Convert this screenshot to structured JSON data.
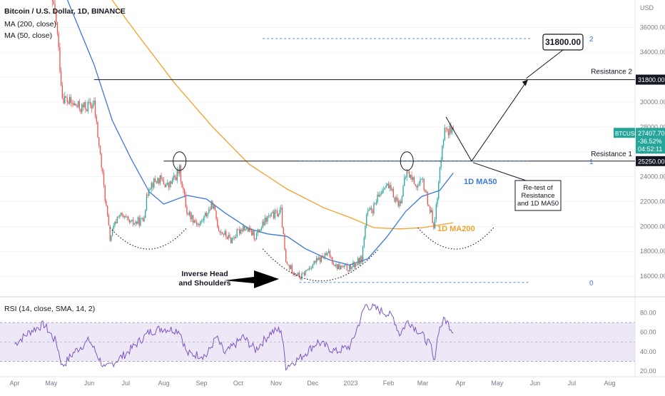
{
  "header": {
    "title": "Bitcoin / U.S. Dollar, 1D, BINANCE",
    "ma200_label": "MA (200, close)",
    "ma50_label": "MA (50, close)",
    "rsi_label": "RSI (14, close, SMA, 14, 2)",
    "currency": "USD"
  },
  "colors": {
    "up_candle": "#26a69a",
    "down_candle": "#ef5350",
    "ma200": "#f2a12b",
    "ma50": "#3c78d8",
    "rsi_line": "#7e57c2",
    "rsi_band": "#ede7f6",
    "fib_line": "#3c78d8",
    "price_tag": "#26a69a"
  },
  "chart_data": {
    "type": "candlestick",
    "symbol": "BTCUSD",
    "timeframe": "1D",
    "exchange": "BINANCE",
    "x_month_labels": [
      "Apr",
      "May",
      "Jun",
      "Jul",
      "Aug",
      "Sep",
      "Oct",
      "Nov",
      "Dec",
      "2023",
      "Feb",
      "Mar",
      "Apr",
      "May",
      "Jun",
      "Jul",
      "Aug"
    ],
    "y_ticks": [
      16000,
      18000,
      20000,
      22000,
      24000,
      26000,
      28000,
      30000,
      32000,
      34000,
      36000
    ],
    "y_tick_labels": [
      "16000.00",
      "18000.00",
      "20000.00",
      "22000.00",
      "24000.00",
      "26000.00",
      "28000.00",
      "30000.00",
      "32000.00",
      "34000.00",
      "36000.00"
    ],
    "ylim": [
      14400,
      38200
    ],
    "rsi_ticks": [
      20,
      40,
      60,
      80
    ],
    "rsi_tick_labels": [
      "20.00",
      "40.00",
      "60.00",
      "80.00"
    ],
    "rsi_ylim": [
      15,
      95
    ],
    "rsi_band": [
      30,
      70
    ],
    "rsi_mid": 50,
    "price_path": [
      {
        "date": "2022-04-28",
        "price": 39500
      },
      {
        "date": "2022-05-05",
        "price": 36500
      },
      {
        "date": "2022-05-10",
        "price": 30500
      },
      {
        "date": "2022-05-15",
        "price": 30000
      },
      {
        "date": "2022-05-25",
        "price": 29500
      },
      {
        "date": "2022-06-05",
        "price": 29800
      },
      {
        "date": "2022-06-12",
        "price": 24000
      },
      {
        "date": "2022-06-18",
        "price": 19000
      },
      {
        "date": "2022-06-25",
        "price": 21000
      },
      {
        "date": "2022-07-05",
        "price": 20200
      },
      {
        "date": "2022-07-15",
        "price": 20500
      },
      {
        "date": "2022-07-20",
        "price": 23300
      },
      {
        "date": "2022-07-28",
        "price": 23800
      },
      {
        "date": "2022-08-05",
        "price": 23200
      },
      {
        "date": "2022-08-14",
        "price": 24500
      },
      {
        "date": "2022-08-20",
        "price": 21200
      },
      {
        "date": "2022-08-30",
        "price": 20100
      },
      {
        "date": "2022-09-10",
        "price": 21800
      },
      {
        "date": "2022-09-15",
        "price": 19800
      },
      {
        "date": "2022-09-25",
        "price": 18900
      },
      {
        "date": "2022-10-05",
        "price": 20000
      },
      {
        "date": "2022-10-15",
        "price": 19200
      },
      {
        "date": "2022-10-25",
        "price": 20700
      },
      {
        "date": "2022-11-05",
        "price": 21200
      },
      {
        "date": "2022-11-09",
        "price": 17000
      },
      {
        "date": "2022-11-21",
        "price": 15900
      },
      {
        "date": "2022-12-01",
        "price": 17000
      },
      {
        "date": "2022-12-14",
        "price": 17800
      },
      {
        "date": "2022-12-20",
        "price": 16800
      },
      {
        "date": "2022-12-31",
        "price": 16600
      },
      {
        "date": "2023-01-10",
        "price": 17400
      },
      {
        "date": "2023-01-14",
        "price": 20900
      },
      {
        "date": "2023-01-20",
        "price": 21500
      },
      {
        "date": "2023-01-29",
        "price": 23500
      },
      {
        "date": "2023-02-10",
        "price": 21800
      },
      {
        "date": "2023-02-16",
        "price": 24400
      },
      {
        "date": "2023-02-25",
        "price": 23200
      },
      {
        "date": "2023-03-01",
        "price": 23600
      },
      {
        "date": "2023-03-10",
        "price": 20200
      },
      {
        "date": "2023-03-13",
        "price": 22200
      },
      {
        "date": "2023-03-17",
        "price": 26900
      },
      {
        "date": "2023-03-20",
        "price": 28000
      },
      {
        "date": "2023-03-26",
        "price": 27400
      }
    ],
    "ma50_path": [
      {
        "date": "2022-04-28",
        "price": 42500
      },
      {
        "date": "2022-05-15",
        "price": 38000
      },
      {
        "date": "2022-06-05",
        "price": 33000
      },
      {
        "date": "2022-06-20",
        "price": 28500
      },
      {
        "date": "2022-07-05",
        "price": 25500
      },
      {
        "date": "2022-07-20",
        "price": 22800
      },
      {
        "date": "2022-08-01",
        "price": 21800
      },
      {
        "date": "2022-08-20",
        "price": 22500
      },
      {
        "date": "2022-09-05",
        "price": 22200
      },
      {
        "date": "2022-09-20",
        "price": 21100
      },
      {
        "date": "2022-10-10",
        "price": 19800
      },
      {
        "date": "2022-10-25",
        "price": 19400
      },
      {
        "date": "2022-11-10",
        "price": 19200
      },
      {
        "date": "2022-11-25",
        "price": 18200
      },
      {
        "date": "2022-12-15",
        "price": 17300
      },
      {
        "date": "2022-12-31",
        "price": 16900
      },
      {
        "date": "2023-01-15",
        "price": 17400
      },
      {
        "date": "2023-01-31",
        "price": 19200
      },
      {
        "date": "2023-02-15",
        "price": 21200
      },
      {
        "date": "2023-02-28",
        "price": 22400
      },
      {
        "date": "2023-03-15",
        "price": 22900
      },
      {
        "date": "2023-03-26",
        "price": 24300
      }
    ],
    "ma200_path": [
      {
        "date": "2022-05-10",
        "price": 43000
      },
      {
        "date": "2022-06-10",
        "price": 39500
      },
      {
        "date": "2022-07-10",
        "price": 35500
      },
      {
        "date": "2022-08-10",
        "price": 31500
      },
      {
        "date": "2022-09-10",
        "price": 28000
      },
      {
        "date": "2022-10-10",
        "price": 25000
      },
      {
        "date": "2022-11-10",
        "price": 23000
      },
      {
        "date": "2022-12-10",
        "price": 21500
      },
      {
        "date": "2023-01-01",
        "price": 20700
      },
      {
        "date": "2023-01-20",
        "price": 19900
      },
      {
        "date": "2023-02-10",
        "price": 19800
      },
      {
        "date": "2023-03-01",
        "price": 19900
      },
      {
        "date": "2023-03-26",
        "price": 20300
      }
    ],
    "rsi_path": [
      {
        "date": "2022-04-01",
        "value": 48
      },
      {
        "date": "2022-04-15",
        "value": 62
      },
      {
        "date": "2022-04-25",
        "value": 68
      },
      {
        "date": "2022-05-05",
        "value": 50
      },
      {
        "date": "2022-05-10",
        "value": 25
      },
      {
        "date": "2022-05-20",
        "value": 40
      },
      {
        "date": "2022-06-01",
        "value": 52
      },
      {
        "date": "2022-06-14",
        "value": 22
      },
      {
        "date": "2022-06-20",
        "value": 28
      },
      {
        "date": "2022-07-01",
        "value": 38
      },
      {
        "date": "2022-07-20",
        "value": 60
      },
      {
        "date": "2022-07-30",
        "value": 64
      },
      {
        "date": "2022-08-14",
        "value": 62
      },
      {
        "date": "2022-08-20",
        "value": 38
      },
      {
        "date": "2022-09-05",
        "value": 36
      },
      {
        "date": "2022-09-13",
        "value": 55
      },
      {
        "date": "2022-09-20",
        "value": 38
      },
      {
        "date": "2022-10-05",
        "value": 55
      },
      {
        "date": "2022-10-15",
        "value": 42
      },
      {
        "date": "2022-10-28",
        "value": 60
      },
      {
        "date": "2022-11-05",
        "value": 63
      },
      {
        "date": "2022-11-09",
        "value": 25
      },
      {
        "date": "2022-11-20",
        "value": 33
      },
      {
        "date": "2022-12-05",
        "value": 50
      },
      {
        "date": "2022-12-20",
        "value": 40
      },
      {
        "date": "2023-01-01",
        "value": 46
      },
      {
        "date": "2023-01-08",
        "value": 70
      },
      {
        "date": "2023-01-13",
        "value": 88
      },
      {
        "date": "2023-01-20",
        "value": 85
      },
      {
        "date": "2023-01-30",
        "value": 80
      },
      {
        "date": "2023-02-05",
        "value": 75
      },
      {
        "date": "2023-02-10",
        "value": 58
      },
      {
        "date": "2023-02-17",
        "value": 72
      },
      {
        "date": "2023-02-28",
        "value": 58
      },
      {
        "date": "2023-03-08",
        "value": 45
      },
      {
        "date": "2023-03-10",
        "value": 28
      },
      {
        "date": "2023-03-14",
        "value": 62
      },
      {
        "date": "2023-03-19",
        "value": 74
      },
      {
        "date": "2023-03-26",
        "value": 61
      }
    ],
    "horizontal_levels": [
      {
        "name": "Resistance 2",
        "price": 31800,
        "label": "31800.00"
      },
      {
        "name": "Resistance 1",
        "price": 25250,
        "label": "25250.00"
      }
    ],
    "fib_levels": [
      {
        "label": "2",
        "price": 35100
      },
      {
        "label": "1",
        "price": 25250
      },
      {
        "label": "0",
        "price": 15500
      }
    ],
    "current_price": {
      "symbol": "BTCUSD",
      "price": "27407.70",
      "change": "-36.52%",
      "countdown": "04:52:11",
      "value": 27407.7
    },
    "annotations": {
      "target_box": "31800.00",
      "resistance2_label": "Resistance 2",
      "resistance1_label": "Resistance 1",
      "ma50_label": "1D MA50",
      "ma200_label": "1D MA200",
      "retest_lines": [
        "Re-test of",
        "Resistance",
        "and 1D MA50"
      ],
      "pattern_lines": [
        "Inverse Head",
        "and Shoulders"
      ]
    }
  }
}
